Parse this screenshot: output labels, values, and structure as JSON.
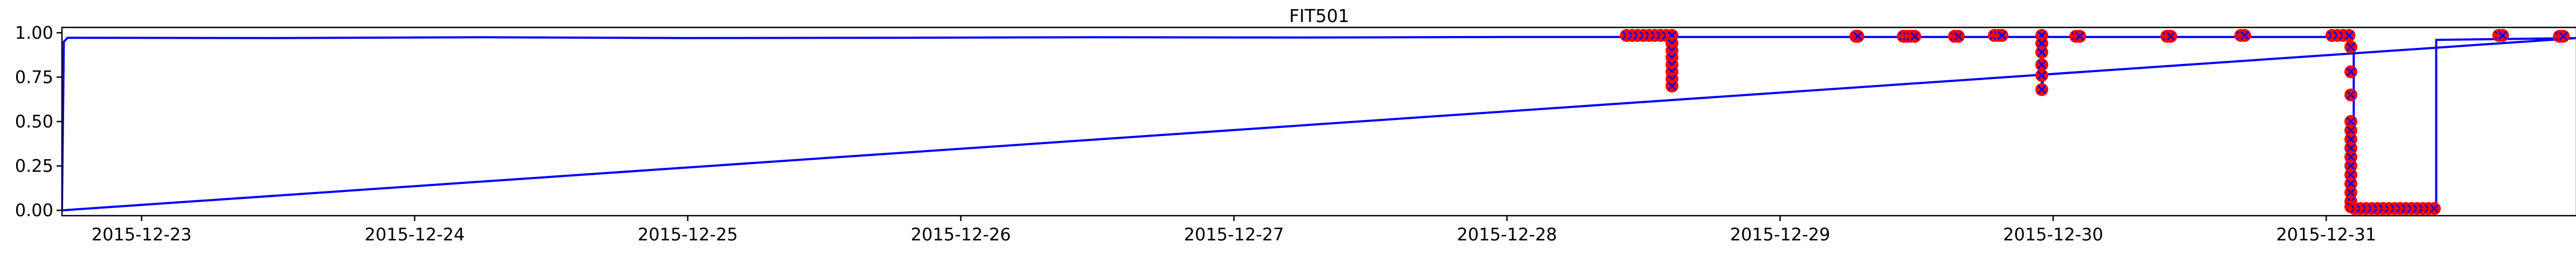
{
  "chart_data": {
    "type": "line",
    "title": "FIT501",
    "xlabel": "",
    "ylabel": "",
    "xlim": [
      "2015-12-22 17:00",
      "2015-12-31 22:00"
    ],
    "ylim": [
      -0.03,
      1.03
    ],
    "x_ticks": [
      "2015-12-23",
      "2015-12-24",
      "2015-12-25",
      "2015-12-26",
      "2015-12-27",
      "2015-12-28",
      "2015-12-29",
      "2015-12-30",
      "2015-12-31"
    ],
    "y_ticks": [
      "0.00",
      "0.25",
      "0.50",
      "0.75",
      "1.00"
    ],
    "grid": false,
    "legend": "none",
    "series": [
      {
        "role": "signal",
        "color": "#0000ff",
        "x": [
          "2015-12-22 17:00",
          "2015-12-22 17:10",
          "2015-12-22 17:30",
          "2015-12-23 12:00",
          "2015-12-24 06:00",
          "2015-12-25 00:00",
          "2015-12-25 18:00",
          "2015-12-26 12:00",
          "2015-12-27 06:00",
          "2015-12-28 00:00",
          "2015-12-28 14:00",
          "2015-12-28 14:30",
          "2015-12-28 14:30",
          "2015-12-28 14:35",
          "2015-12-28 14:35",
          "2015-12-29 12:00",
          "2015-12-29 23:00",
          "2015-12-29 23:00",
          "2015-12-29 23:05",
          "2015-12-29 23:05",
          "2015-12-30 12:00",
          "2015-12-31 02:00",
          "2015-12-31 02:10",
          "2015-12-31 02:10",
          "2015-12-31 02:25",
          "2015-12-31 02:25",
          "2015-12-31 09:40",
          "2015-12-31 09:40",
          "2015-12-31 22:00",
          "2015-12-31 22:00",
          "2015-12-22 17:00"
        ],
        "y": [
          0.0,
          0.95,
          0.972,
          0.97,
          0.975,
          0.97,
          0.972,
          0.975,
          0.973,
          0.976,
          0.976,
          0.976,
          0.7,
          0.7,
          0.976,
          0.976,
          0.976,
          0.68,
          0.68,
          0.976,
          0.976,
          0.976,
          0.976,
          0.92,
          0.92,
          0.01,
          0.01,
          0.96,
          0.97,
          0.97,
          0.0
        ]
      },
      {
        "role": "anomaly",
        "color": "#ff0000",
        "x": [
          "2015-12-28 10:30",
          "2015-12-28 11:00",
          "2015-12-28 11:30",
          "2015-12-28 12:00",
          "2015-12-28 12:30",
          "2015-12-28 13:00",
          "2015-12-28 13:30",
          "2015-12-28 14:00",
          "2015-12-28 14:30",
          "2015-12-28 14:30",
          "2015-12-28 14:30",
          "2015-12-28 14:30",
          "2015-12-28 14:30",
          "2015-12-28 14:30",
          "2015-12-28 14:30",
          "2015-12-28 14:30",
          "2015-12-29 06:40",
          "2015-12-29 06:50",
          "2015-12-29 10:50",
          "2015-12-29 11:10",
          "2015-12-29 11:30",
          "2015-12-29 11:50",
          "2015-12-29 15:20",
          "2015-12-29 15:40",
          "2015-12-29 18:50",
          "2015-12-29 19:10",
          "2015-12-29 19:30",
          "2015-12-29 23:00",
          "2015-12-29 23:00",
          "2015-12-29 23:00",
          "2015-12-29 23:00",
          "2015-12-29 23:00",
          "2015-12-29 23:00",
          "2015-12-30 02:00",
          "2015-12-30 02:20",
          "2015-12-30 10:00",
          "2015-12-30 10:20",
          "2015-12-30 16:30",
          "2015-12-30 16:50",
          "2015-12-31 00:30",
          "2015-12-31 01:00",
          "2015-12-31 01:30",
          "2015-12-31 02:00",
          "2015-12-31 02:10",
          "2015-12-31 02:10",
          "2015-12-31 02:10",
          "2015-12-31 02:10",
          "2015-12-31 02:10",
          "2015-12-31 02:10",
          "2015-12-31 02:10",
          "2015-12-31 02:10",
          "2015-12-31 02:10",
          "2015-12-31 02:10",
          "2015-12-31 02:10",
          "2015-12-31 02:10",
          "2015-12-31 02:10",
          "2015-12-31 02:10",
          "2015-12-31 02:30",
          "2015-12-31 03:00",
          "2015-12-31 03:30",
          "2015-12-31 04:00",
          "2015-12-31 04:30",
          "2015-12-31 05:00",
          "2015-12-31 05:30",
          "2015-12-31 06:00",
          "2015-12-31 06:30",
          "2015-12-31 07:00",
          "2015-12-31 07:30",
          "2015-12-31 08:00",
          "2015-12-31 08:30",
          "2015-12-31 09:00",
          "2015-12-31 09:30",
          "2015-12-31 15:10",
          "2015-12-31 15:30",
          "2015-12-31 20:30",
          "2015-12-31 20:50"
        ],
        "y": [
          0.985,
          0.985,
          0.985,
          0.985,
          0.985,
          0.985,
          0.985,
          0.985,
          0.985,
          0.94,
          0.9,
          0.86,
          0.82,
          0.78,
          0.74,
          0.7,
          0.98,
          0.98,
          0.98,
          0.98,
          0.98,
          0.98,
          0.98,
          0.98,
          0.985,
          0.985,
          0.985,
          0.985,
          0.94,
          0.89,
          0.82,
          0.76,
          0.68,
          0.98,
          0.98,
          0.98,
          0.98,
          0.985,
          0.985,
          0.985,
          0.985,
          0.985,
          0.985,
          0.92,
          0.78,
          0.65,
          0.5,
          0.45,
          0.4,
          0.35,
          0.3,
          0.25,
          0.2,
          0.15,
          0.1,
          0.05,
          0.02,
          0.01,
          0.01,
          0.01,
          0.01,
          0.01,
          0.01,
          0.01,
          0.01,
          0.01,
          0.01,
          0.01,
          0.01,
          0.01,
          0.01,
          0.01,
          0.985,
          0.985,
          0.98,
          0.98
        ]
      }
    ]
  }
}
